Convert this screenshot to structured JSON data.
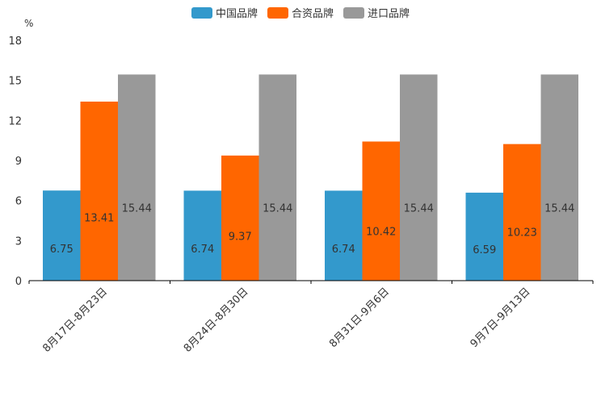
{
  "chart_data": {
    "type": "bar",
    "unit": "%",
    "categories": [
      "8月17日-8月23日",
      "8月24日-8月30日",
      "8月31日-9月6日",
      "9月7日-9月13日"
    ],
    "series": [
      {
        "name": "中国品牌",
        "color": "#3399cc",
        "values": [
          6.75,
          6.74,
          6.74,
          6.59
        ]
      },
      {
        "name": "合资品牌",
        "color": "#ff6600",
        "values": [
          13.41,
          9.37,
          10.42,
          10.23
        ]
      },
      {
        "name": "进口品牌",
        "color": "#999999",
        "values": [
          15.44,
          15.44,
          15.44,
          15.44
        ]
      }
    ],
    "ylim": [
      0,
      18
    ],
    "yticks": [
      0,
      3,
      6,
      9,
      12,
      15,
      18
    ],
    "legend": "top-center"
  }
}
